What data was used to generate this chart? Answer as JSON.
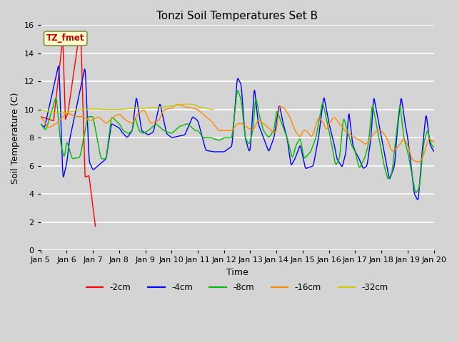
{
  "title": "Tonzi Soil Temperatures Set B",
  "xlabel": "Time",
  "ylabel": "Soil Temperature (C)",
  "ylim": [
    0,
    16
  ],
  "annotation_text": "TZ_fmet",
  "annotation_color": "#cc0000",
  "annotation_bg": "#ffffcc",
  "annotation_border": "#999966",
  "fig_facecolor": "#d8d8d8",
  "plot_facecolor": "#d8d8d8",
  "grid_color": "#ffffff",
  "line_colors": {
    "-2cm": "#ff0000",
    "-4cm": "#0000ff",
    "-8cm": "#00bb00",
    "-16cm": "#ff8800",
    "-32cm": "#cccc00"
  },
  "line_width": 1.0,
  "tick_labels": [
    "Jan 5",
    "Jan 6",
    "Jan 7",
    "Jan 8",
    "Jan 9",
    "Jan 10",
    "Jan 11",
    "Jan 12",
    "Jan 13",
    "Jan 14",
    "Jan 15",
    "Jan 16",
    "Jan 17",
    "Jan 18",
    "Jan 19",
    "Jan 20"
  ]
}
